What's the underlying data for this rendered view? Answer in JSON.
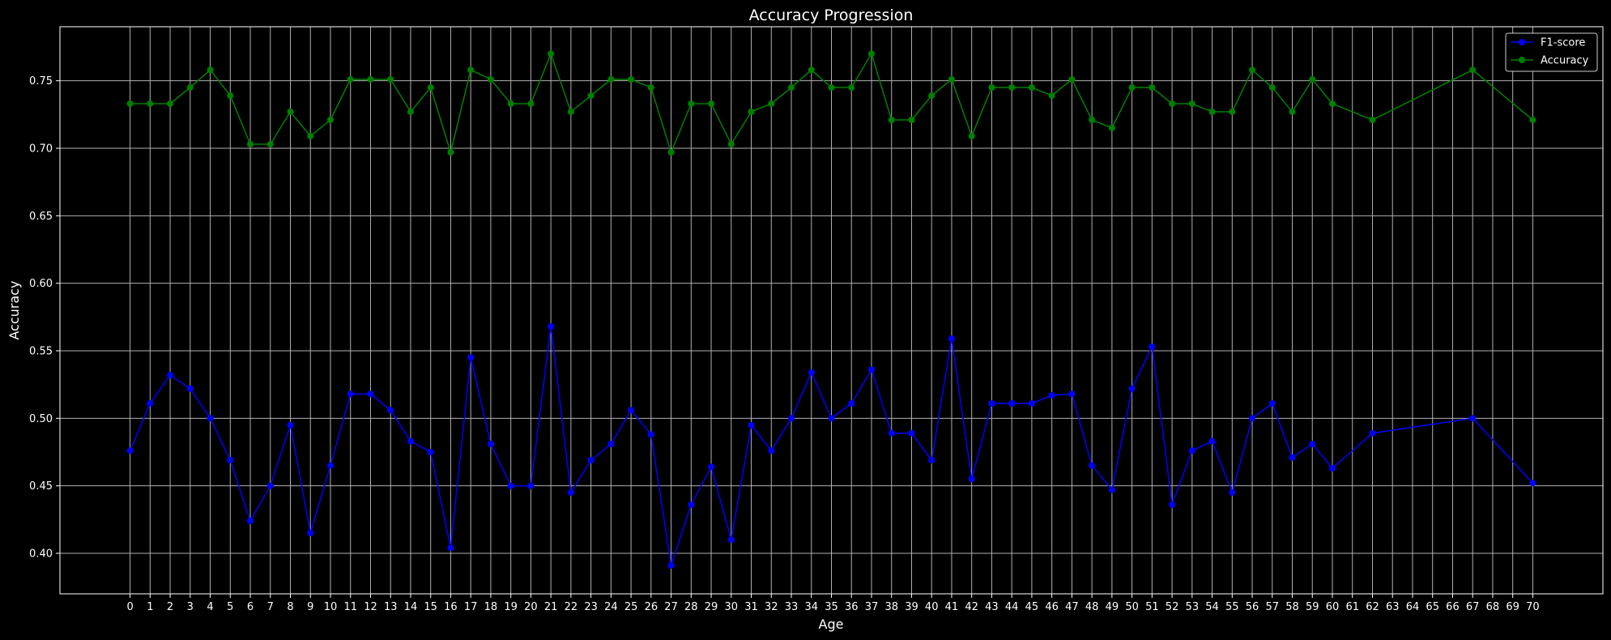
{
  "chart_data": {
    "type": "line",
    "title": "Accuracy Progression",
    "xlabel": "Age",
    "ylabel": "Accuracy",
    "ylim": [
      0.37,
      0.79
    ],
    "xlim": [
      -3.5,
      73.5
    ],
    "yticks": [
      0.4,
      0.45,
      0.5,
      0.55,
      0.6,
      0.65,
      0.7,
      0.75
    ],
    "ytick_labels": [
      "0.40",
      "0.45",
      "0.50",
      "0.55",
      "0.60",
      "0.65",
      "0.70",
      "0.75"
    ],
    "xticks": [
      0,
      1,
      2,
      3,
      4,
      5,
      6,
      7,
      8,
      9,
      10,
      11,
      12,
      13,
      14,
      15,
      16,
      17,
      18,
      19,
      20,
      21,
      22,
      23,
      24,
      25,
      26,
      27,
      28,
      29,
      30,
      31,
      32,
      33,
      34,
      35,
      36,
      37,
      38,
      39,
      40,
      41,
      42,
      43,
      44,
      45,
      46,
      47,
      48,
      49,
      50,
      51,
      52,
      53,
      54,
      55,
      56,
      57,
      58,
      59,
      60,
      61,
      62,
      63,
      64,
      65,
      66,
      67,
      68,
      69,
      70
    ],
    "xtick_labels": [
      "0",
      "1",
      "2",
      "3",
      "4",
      "5",
      "6",
      "7",
      "8",
      "9",
      "10",
      "11",
      "12",
      "13",
      "14",
      "15",
      "16",
      "17",
      "18",
      "19",
      "20",
      "21",
      "22",
      "23",
      "24",
      "25",
      "26",
      "27",
      "28",
      "29",
      "30",
      "31",
      "32",
      "33",
      "34",
      "35",
      "36",
      "37",
      "38",
      "39",
      "40",
      "41",
      "42",
      "43",
      "44",
      "45",
      "46",
      "47",
      "48",
      "49",
      "50",
      "51",
      "52",
      "53",
      "54",
      "55",
      "56",
      "57",
      "58",
      "59",
      "60",
      "61",
      "62",
      "63",
      "64",
      "65",
      "66",
      "67",
      "68",
      "69",
      "70"
    ],
    "grid": true,
    "legend_position": "top-right",
    "background": "#000000",
    "foreground": "#ffffff",
    "series": [
      {
        "name": "F1-score",
        "color": "#0000ff",
        "x": [
          0,
          1,
          2,
          3,
          4,
          5,
          6,
          7,
          8,
          9,
          10,
          11,
          12,
          13,
          14,
          15,
          16,
          17,
          18,
          19,
          20,
          21,
          22,
          23,
          24,
          25,
          26,
          27,
          28,
          29,
          30,
          31,
          32,
          33,
          34,
          35,
          36,
          37,
          38,
          39,
          40,
          41,
          42,
          43,
          44,
          45,
          46,
          47,
          48,
          49,
          50,
          51,
          52,
          53,
          54,
          55,
          56,
          57,
          58,
          59,
          60,
          62,
          67,
          70
        ],
        "y": [
          0.476,
          0.511,
          0.532,
          0.522,
          0.5,
          0.469,
          0.424,
          0.45,
          0.495,
          0.415,
          0.465,
          0.518,
          0.518,
          0.506,
          0.483,
          0.475,
          0.404,
          0.545,
          0.481,
          0.45,
          0.45,
          0.568,
          0.445,
          0.469,
          0.481,
          0.506,
          0.488,
          0.391,
          0.436,
          0.464,
          0.41,
          0.495,
          0.476,
          0.5,
          0.534,
          0.5,
          0.511,
          0.536,
          0.489,
          0.489,
          0.469,
          0.559,
          0.455,
          0.511,
          0.511,
          0.511,
          0.517,
          0.518,
          0.465,
          0.447,
          0.522,
          0.553,
          0.436,
          0.476,
          0.483,
          0.445,
          0.5,
          0.511,
          0.471,
          0.481,
          0.463,
          0.489,
          0.5,
          0.452
        ]
      },
      {
        "name": "Accuracy",
        "color": "#008000",
        "x": [
          0,
          1,
          2,
          3,
          4,
          5,
          6,
          7,
          8,
          9,
          10,
          11,
          12,
          13,
          14,
          15,
          16,
          17,
          18,
          19,
          20,
          21,
          22,
          23,
          24,
          25,
          26,
          27,
          28,
          29,
          30,
          31,
          32,
          33,
          34,
          35,
          36,
          37,
          38,
          39,
          40,
          41,
          42,
          43,
          44,
          45,
          46,
          47,
          48,
          49,
          50,
          51,
          52,
          53,
          54,
          55,
          56,
          57,
          58,
          59,
          60,
          62,
          67,
          70
        ],
        "y": [
          0.733,
          0.733,
          0.733,
          0.745,
          0.758,
          0.739,
          0.703,
          0.703,
          0.727,
          0.709,
          0.721,
          0.751,
          0.751,
          0.751,
          0.727,
          0.745,
          0.697,
          0.758,
          0.751,
          0.733,
          0.733,
          0.77,
          0.727,
          0.739,
          0.751,
          0.751,
          0.745,
          0.697,
          0.733,
          0.733,
          0.703,
          0.727,
          0.733,
          0.745,
          0.758,
          0.745,
          0.745,
          0.77,
          0.721,
          0.721,
          0.739,
          0.751,
          0.709,
          0.745,
          0.745,
          0.745,
          0.739,
          0.751,
          0.721,
          0.715,
          0.745,
          0.745,
          0.733,
          0.733,
          0.727,
          0.727,
          0.758,
          0.745,
          0.727,
          0.751,
          0.733,
          0.721,
          0.758,
          0.721
        ]
      }
    ]
  }
}
